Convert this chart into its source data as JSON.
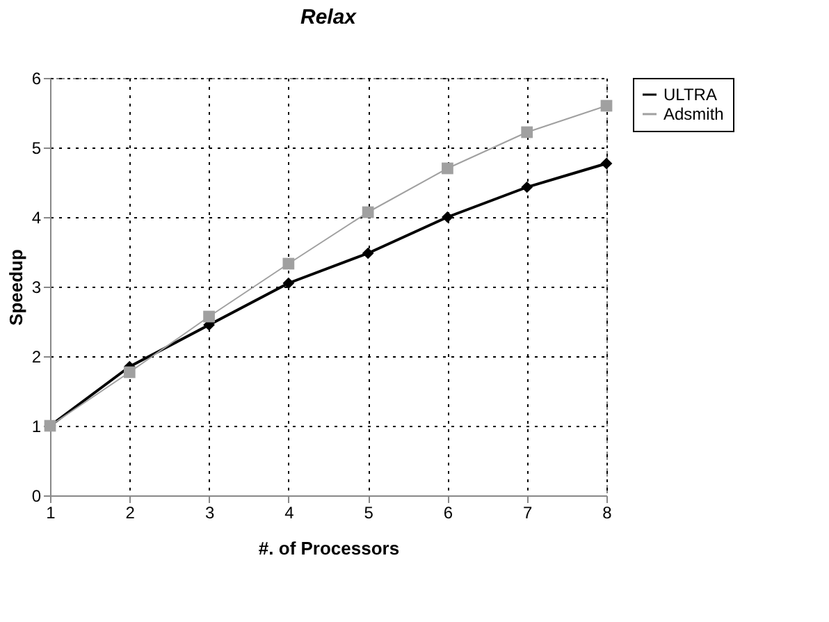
{
  "chart_data": {
    "type": "line",
    "title": "Relax",
    "xlabel": "#. of Processors",
    "ylabel": "Speedup",
    "x": [
      1,
      2,
      3,
      4,
      5,
      6,
      7,
      8
    ],
    "series": [
      {
        "name": "ULTRA",
        "color": "#000000",
        "marker": "diamond",
        "line_style": "solid",
        "values": [
          1,
          1.85,
          2.45,
          3.05,
          3.48,
          4.0,
          4.43,
          4.77
        ]
      },
      {
        "name": "Adsmith",
        "color": "#a0a0a0",
        "marker": "square",
        "line_style": "solid",
        "values": [
          1,
          1.77,
          2.57,
          3.33,
          4.07,
          4.7,
          5.22,
          5.6
        ]
      }
    ],
    "xlim": [
      1,
      8
    ],
    "xticks": [
      1,
      2,
      3,
      4,
      5,
      6,
      7,
      8
    ],
    "ylim": [
      0,
      6
    ],
    "yticks": [
      0,
      1,
      2,
      3,
      4,
      5,
      6
    ],
    "grid": true,
    "legend": "right"
  }
}
